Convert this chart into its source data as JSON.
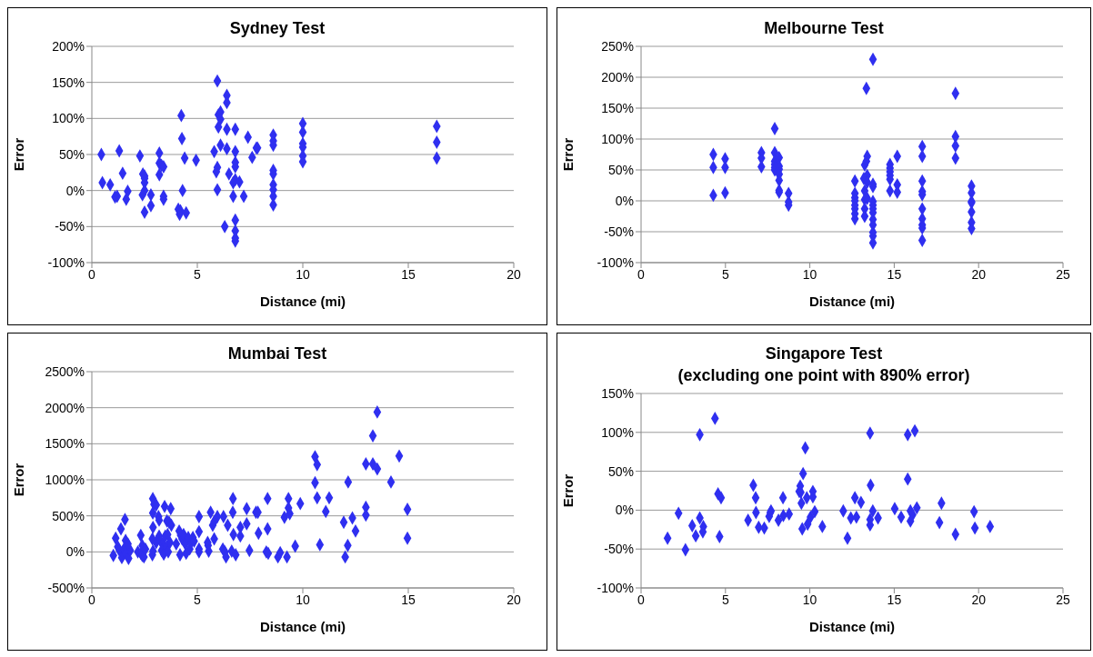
{
  "chart_data": [
    {
      "type": "scatter",
      "title": "Sydney Test",
      "xlabel": "Distance (mi)",
      "ylabel": "Error",
      "color": "#2f2ff0",
      "marker": "diamond",
      "grid": "y",
      "xlim": [
        0,
        20
      ],
      "xticks": [
        0,
        5,
        10,
        15,
        20
      ],
      "ylim": [
        -100,
        200
      ],
      "yticks": [
        {
          "value": -100,
          "label": "-100%"
        },
        {
          "value": -50,
          "label": "-50%"
        },
        {
          "value": 0,
          "label": "0%"
        },
        {
          "value": 50,
          "label": "50%"
        },
        {
          "value": 100,
          "label": "100%"
        },
        {
          "value": 150,
          "label": "150%"
        },
        {
          "value": 200,
          "label": "200%"
        }
      ],
      "x": [
        0.45,
        0.5,
        0.87,
        1.3,
        1.46,
        1.1,
        1.2,
        1.7,
        1.63,
        2.28,
        2.42,
        2.5,
        2.5,
        2.5,
        2.5,
        2.4,
        2.8,
        2.8,
        2.5,
        3.2,
        3.2,
        3.3,
        3.4,
        3.2,
        3.4,
        3.4,
        4.24,
        4.27,
        4.4,
        4.3,
        4.1,
        4.2,
        4.16,
        4.47,
        4.94,
        5.95,
        6.0,
        6.1,
        6.1,
        6.0,
        6.1,
        5.8,
        5.95,
        5.9,
        5.95,
        6.4,
        6.4,
        6.4,
        6.4,
        6.8,
        6.8,
        6.8,
        6.8,
        6.5,
        6.8,
        6.7,
        7.0,
        6.7,
        7.2,
        6.3,
        6.8,
        6.8,
        6.8,
        6.8,
        7.4,
        7.6,
        7.8,
        7.85,
        8.6,
        8.6,
        8.6,
        8.6,
        8.6,
        8.6,
        8.6,
        8.6,
        8.6,
        10,
        10,
        10,
        10,
        10,
        10,
        16.35,
        16.35,
        16.35
      ],
      "values": [
        50,
        11,
        8,
        55,
        24,
        -9,
        -8,
        -1,
        -12,
        48,
        23,
        20,
        17,
        11,
        0,
        -6,
        -6,
        -21,
        -30,
        52,
        38,
        35,
        33,
        22,
        -8,
        -12,
        104,
        72,
        45,
        0,
        -26,
        -28,
        -33,
        -31,
        42,
        152,
        105,
        109,
        99,
        88,
        63,
        54,
        32,
        26,
        1,
        132,
        122,
        85,
        58,
        85,
        54,
        39,
        33,
        23,
        15,
        11,
        12,
        -8,
        -8,
        -50,
        -41,
        -56,
        -66,
        -70,
        74,
        46,
        59,
        59,
        77,
        69,
        63,
        28,
        23,
        8,
        1,
        -8,
        -20,
        93,
        81,
        65,
        60,
        48,
        40,
        89,
        67,
        45
      ]
    },
    {
      "type": "scatter",
      "title": "Melbourne Test",
      "xlabel": "Distance (mi)",
      "ylabel": "Error",
      "color": "#2f2ff0",
      "marker": "diamond",
      "grid": "y",
      "xlim": [
        0,
        25
      ],
      "xticks": [
        0,
        5,
        10,
        15,
        20,
        25
      ],
      "ylim": [
        -100,
        250
      ],
      "yticks": [
        {
          "value": -100,
          "label": "-100%"
        },
        {
          "value": -50,
          "label": "-50%"
        },
        {
          "value": 0,
          "label": "0%"
        },
        {
          "value": 50,
          "label": "50%"
        },
        {
          "value": 100,
          "label": "100%"
        },
        {
          "value": 150,
          "label": "150%"
        },
        {
          "value": 200,
          "label": "200%"
        },
        {
          "value": 250,
          "label": "250%"
        }
      ],
      "x": [
        4.28,
        4.28,
        4.28,
        4.98,
        4.98,
        4.98,
        7.13,
        7.13,
        7.13,
        7.92,
        7.92,
        7.92,
        7.92,
        7.92,
        7.92,
        8.18,
        8.18,
        8.18,
        8.18,
        8.18,
        8.18,
        8.18,
        8.74,
        8.74,
        8.74,
        12.67,
        12.67,
        12.67,
        12.67,
        12.67,
        12.67,
        12.67,
        12.67,
        13.25,
        13.35,
        13.4,
        13.4,
        13.2,
        13.4,
        13.25,
        13.25,
        13.4,
        13.25,
        13.25,
        13.35,
        13.74,
        13.74,
        13.74,
        13.74,
        13.74,
        13.74,
        13.74,
        13.74,
        13.74,
        13.74,
        13.74,
        13.74,
        14.75,
        14.75,
        14.75,
        14.75,
        14.75,
        14.75,
        15.18,
        15.18,
        15.18,
        16.66,
        16.66,
        16.66,
        16.66,
        16.66,
        16.66,
        16.66,
        16.66,
        16.66,
        16.66,
        18.63,
        18.63,
        18.63,
        18.63,
        19.58,
        19.58,
        19.58,
        19.58,
        19.58,
        19.58,
        19.58
      ],
      "values": [
        75,
        54,
        9,
        68,
        54,
        13,
        78,
        69,
        55,
        117,
        78,
        64,
        59,
        54,
        50,
        70,
        56,
        51,
        43,
        33,
        17,
        14,
        12,
        -2,
        -7,
        32,
        12,
        5,
        0,
        -7,
        -13,
        -21,
        -29,
        58,
        64,
        72,
        41,
        36,
        30,
        16,
        2,
        4,
        -13,
        -25,
        182,
        229,
        27,
        23,
        -1,
        -7,
        -13,
        -19,
        -30,
        -39,
        -51,
        -57,
        -68,
        59,
        53,
        47,
        41,
        35,
        16,
        26,
        14,
        72,
        88,
        72,
        32,
        15,
        10,
        -13,
        -29,
        -39,
        -44,
        -64,
        174,
        104,
        89,
        69,
        24,
        13,
        -1,
        -3,
        -18,
        -35,
        -45
      ]
    },
    {
      "type": "scatter",
      "title": "Mumbai Test",
      "xlabel": "Distance (mi)",
      "ylabel": "Error",
      "color": "#2f2ff0",
      "marker": "diamond",
      "grid": "y",
      "xlim": [
        0,
        20
      ],
      "xticks": [
        0,
        5,
        10,
        15,
        20
      ],
      "ylim": [
        -500,
        2500
      ],
      "yticks": [
        {
          "value": -500,
          "label": "-500%"
        },
        {
          "value": 0,
          "label": "0%"
        },
        {
          "value": 500,
          "label": "500%"
        },
        {
          "value": 1000,
          "label": "1000%"
        },
        {
          "value": 1500,
          "label": "1500%"
        },
        {
          "value": 2000,
          "label": "2000%"
        },
        {
          "value": 2500,
          "label": "2500%"
        }
      ],
      "x": [
        1.02,
        1.13,
        1.38,
        1.57,
        1.23,
        1.31,
        1.42,
        1.52,
        1.6,
        1.74,
        1.82,
        1.6,
        1.71,
        2.18,
        2.32,
        2.39,
        2.32,
        2.39,
        2.47,
        2.54,
        2.89,
        2.95,
        3.05,
        2.89,
        2.9,
        3.16,
        3.19,
        2.87,
        2.9,
        2.87,
        3.05,
        3.19,
        3.26,
        3.36,
        3.31,
        3.41,
        3.48,
        3.55,
        3.62,
        3.59,
        3.7,
        3.45,
        3.74,
        3.56,
        3.66,
        3.77,
        4.14,
        4.21,
        4.28,
        4.35,
        4.43,
        4.57,
        4.64,
        4.71,
        4.79,
        4.18,
        4.47,
        4.0,
        4.85,
        5.08,
        5.08,
        5.08,
        5.08,
        5.49,
        5.51,
        5.54,
        5.63,
        5.73,
        5.8,
        5.8,
        5.95,
        6.24,
        6.21,
        6.31,
        6.36,
        6.44,
        6.63,
        6.68,
        6.69,
        6.71,
        6.82,
        7.04,
        7.04,
        7.34,
        7.34,
        7.47,
        7.78,
        7.87,
        7.9,
        8.33,
        8.33,
        8.27,
        8.36,
        8.82,
        8.93,
        9.13,
        9.25,
        9.32,
        9.32,
        9.38,
        9.64,
        9.88,
        10.58,
        10.68,
        10.58,
        10.68,
        10.81,
        11.09,
        11.25,
        11.94,
        12.01,
        12.13,
        12.15,
        12.35,
        12.5,
        12.99,
        12.99,
        12.99,
        13.32,
        13.32,
        13.53,
        13.53,
        14.18,
        14.57,
        14.96,
        14.96
      ],
      "values": [
        -50,
        190,
        320,
        450,
        70,
        20,
        -80,
        40,
        -20,
        -90,
        20,
        160,
        110,
        0,
        -20,
        -50,
        230,
        90,
        -70,
        40,
        740,
        660,
        650,
        540,
        340,
        490,
        440,
        180,
        10,
        -40,
        130,
        220,
        150,
        110,
        20,
        -30,
        220,
        70,
        0,
        240,
        130,
        630,
        600,
        430,
        410,
        370,
        290,
        230,
        180,
        240,
        110,
        200,
        40,
        130,
        200,
        -40,
        -20,
        110,
        150,
        490,
        280,
        40,
        0,
        130,
        90,
        10,
        550,
        370,
        420,
        180,
        490,
        490,
        40,
        0,
        -70,
        370,
        10,
        550,
        740,
        240,
        -40,
        340,
        220,
        600,
        390,
        20,
        550,
        550,
        260,
        740,
        320,
        0,
        -20,
        -70,
        -10,
        480,
        -70,
        740,
        610,
        530,
        80,
        670,
        1320,
        1210,
        960,
        750,
        100,
        560,
        750,
        410,
        -70,
        90,
        970,
        470,
        290,
        1220,
        620,
        510,
        1220,
        1610,
        1940,
        1150,
        970,
        1330,
        590,
        190
      ]
    },
    {
      "type": "scatter",
      "title": "Singapore Test",
      "subtitle": "(excluding one point with 890% error)",
      "xlabel": "Distance (mi)",
      "ylabel": "Error",
      "color": "#2f2ff0",
      "marker": "diamond",
      "grid": "y",
      "xlim": [
        0,
        25
      ],
      "xticks": [
        0,
        5,
        10,
        15,
        20,
        25
      ],
      "ylim": [
        -100,
        150
      ],
      "yticks": [
        {
          "value": -100,
          "label": "-100%"
        },
        {
          "value": -50,
          "label": "-50%"
        },
        {
          "value": 0,
          "label": "0%"
        },
        {
          "value": 50,
          "label": "50%"
        },
        {
          "value": 100,
          "label": "100%"
        },
        {
          "value": 150,
          "label": "150%"
        }
      ],
      "x": [
        1.57,
        2.22,
        2.63,
        3.03,
        3.24,
        3.48,
        3.48,
        3.69,
        3.66,
        4.38,
        4.56,
        4.74,
        4.65,
        6.34,
        6.65,
        6.79,
        6.81,
        6.97,
        7.3,
        7.59,
        7.66,
        7.7,
        8.14,
        8.41,
        8.43,
        8.77,
        9.37,
        9.43,
        9.46,
        9.5,
        9.6,
        9.73,
        9.55,
        9.82,
        9.87,
        10.04,
        10.18,
        10.18,
        10.29,
        10.74,
        11.98,
        12.23,
        12.43,
        12.76,
        12.67,
        13.03,
        13.57,
        13.6,
        13.57,
        13.57,
        13.73,
        14.04,
        15.03,
        15.41,
        15.8,
        15.8,
        15.96,
        16.09,
        15.96,
        16.22,
        16.34,
        17.68,
        17.8,
        18.63,
        19.73,
        19.78,
        20.68
      ],
      "values": [
        -36,
        -4,
        -51,
        -20,
        -33,
        97,
        -10,
        -21,
        -28,
        118,
        21,
        16,
        -34,
        -13,
        32,
        16,
        -3,
        -22,
        -23,
        -8,
        -3,
        -1,
        -13,
        16,
        -7,
        -5,
        24,
        31,
        23,
        9,
        47,
        80,
        -24,
        16,
        -18,
        -9,
        24,
        17,
        -2,
        -21,
        -1,
        -36,
        -10,
        -9,
        16,
        10,
        99,
        32,
        -12,
        -19,
        -1,
        -10,
        2,
        -9,
        97,
        40,
        -1,
        -6,
        -14,
        102,
        3,
        -16,
        9,
        -31,
        -2,
        -23,
        -21
      ]
    }
  ]
}
